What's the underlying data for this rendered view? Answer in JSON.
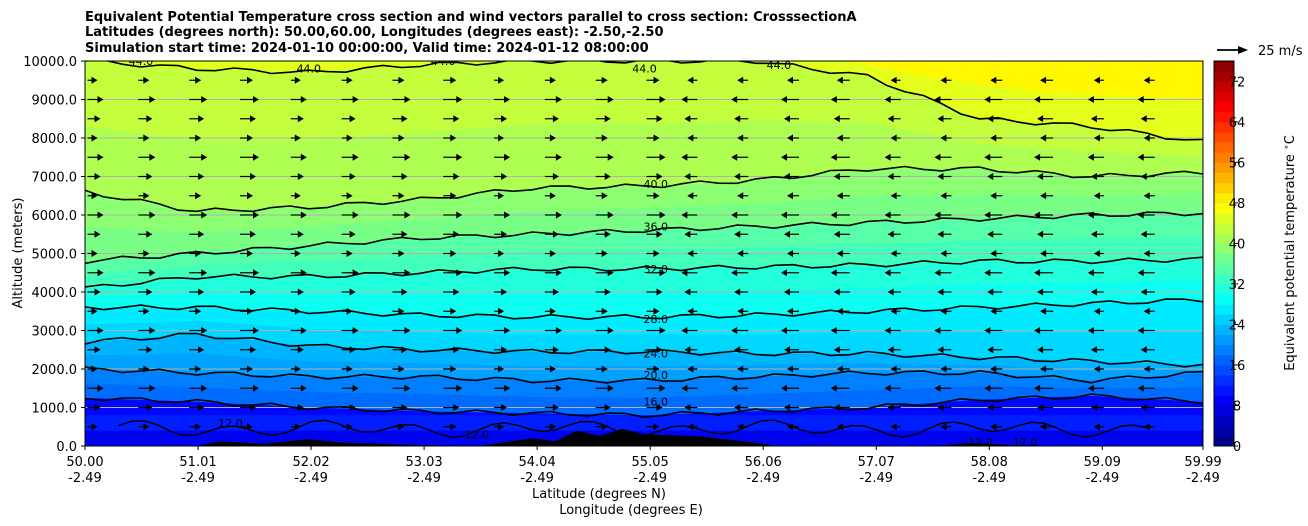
{
  "chart_data": {
    "type": "contourf-cross-section",
    "title_lines": [
      "Equivalent Potential Temperature cross section and wind vectors parallel to cross section: CrosssectionA",
      "Latitudes (degrees north): 50.00,60.00, Longitudes (degrees east): -2.50,-2.50",
      "Simulation start time: 2024-01-10 00:00:00, Valid time: 2024-01-12 08:00:00"
    ],
    "ylabel": "Altitude (meters)",
    "xlabel_lat": "Latitude (degrees N)",
    "xlabel_lon": "Longitude (degrees E)",
    "ylim": [
      0,
      10000
    ],
    "xlim": [
      50.0,
      59.99
    ],
    "y_ticks": [
      "0.0",
      "1000.0",
      "2000.0",
      "3000.0",
      "4000.0",
      "5000.0",
      "6000.0",
      "7000.0",
      "8000.0",
      "9000.0",
      "10000.0"
    ],
    "x_ticks_lat": [
      "50.00",
      "51.01",
      "52.02",
      "53.03",
      "54.04",
      "55.05",
      "56.06",
      "57.07",
      "58.08",
      "59.09",
      "59.99"
    ],
    "x_ticks_lon": [
      "-2.49",
      "-2.49",
      "-2.49",
      "-2.49",
      "-2.49",
      "-2.49",
      "-2.49",
      "-2.49",
      "-2.49",
      "-2.49",
      "-2.49"
    ],
    "grid": "horizontal",
    "colorbar": {
      "label": "Equivalent potential temperature $^\\circ$C",
      "min": 0,
      "max": 76,
      "step": 2,
      "ticks": [
        "0",
        "8",
        "16",
        "24",
        "32",
        "40",
        "48",
        "56",
        "64",
        "72"
      ],
      "colormap": "jet"
    },
    "contour_labels": [
      {
        "value": "12.0",
        "lat": 51.3,
        "alt": 600
      },
      {
        "value": "12.0",
        "lat": 53.5,
        "alt": 300
      },
      {
        "value": "12.0",
        "lat": 58.0,
        "alt": 100
      },
      {
        "value": "12.0",
        "lat": 58.4,
        "alt": 100
      },
      {
        "value": "16.0",
        "lat": 55.1,
        "alt": 1150
      },
      {
        "value": "20.0",
        "lat": 55.1,
        "alt": 1850
      },
      {
        "value": "24.0",
        "lat": 55.1,
        "alt": 2400
      },
      {
        "value": "28.0",
        "lat": 55.1,
        "alt": 3300
      },
      {
        "value": "32.0",
        "lat": 55.1,
        "alt": 4600
      },
      {
        "value": "36.0",
        "lat": 55.1,
        "alt": 5700
      },
      {
        "value": "40.0",
        "lat": 55.1,
        "alt": 6800
      },
      {
        "value": "44.0",
        "lat": 50.5,
        "alt": 10000
      },
      {
        "value": "44.0",
        "lat": 52.0,
        "alt": 9800
      },
      {
        "value": "44.0",
        "lat": 53.2,
        "alt": 10000
      },
      {
        "value": "44.0",
        "lat": 55.0,
        "alt": 9800
      },
      {
        "value": "44.0",
        "lat": 56.2,
        "alt": 9900
      }
    ],
    "isolines": [
      {
        "value": 16,
        "alt": [
          1250,
          1150,
          1000,
          900,
          850,
          800,
          900,
          1000,
          1200,
          1300,
          1150
        ]
      },
      {
        "value": 20,
        "alt": [
          2000,
          1900,
          1800,
          1800,
          1700,
          1700,
          1800,
          1900,
          1900,
          1700,
          1900
        ]
      },
      {
        "value": 24,
        "alt": [
          2700,
          2900,
          2600,
          2500,
          2450,
          2450,
          2400,
          2400,
          2300,
          2200,
          2100
        ]
      },
      {
        "value": 28,
        "alt": [
          3600,
          3600,
          3500,
          3400,
          3350,
          3350,
          3400,
          3500,
          3600,
          3700,
          3800
        ]
      },
      {
        "value": 32,
        "alt": [
          4100,
          4400,
          4400,
          4500,
          4600,
          4600,
          4650,
          4700,
          4800,
          4800,
          4850
        ]
      },
      {
        "value": 36,
        "alt": [
          4800,
          5000,
          5200,
          5400,
          5500,
          5600,
          5700,
          5800,
          5900,
          6000,
          6050
        ]
      },
      {
        "value": 40,
        "alt": [
          6600,
          6100,
          6200,
          6400,
          6700,
          6750,
          6900,
          7200,
          7200,
          7000,
          7100
        ]
      },
      {
        "value": 44,
        "alt": [
          10000,
          9800,
          9700,
          9900,
          10000,
          10000,
          10000,
          9600,
          8500,
          8300,
          7900
        ]
      }
    ],
    "wind_vectors": {
      "scale_label": "25 m/s",
      "rows_alt": [
        500,
        1000,
        1500,
        2000,
        2500,
        3000,
        3500,
        4000,
        4500,
        5000,
        5500,
        6000,
        6500,
        7000,
        7500,
        8000,
        8500,
        9000,
        9500
      ],
      "direction_flip_lat": 55.1,
      "south_direction": "east",
      "north_direction": "west"
    },
    "terrain": "bumps at lat 51.0-55.0 up to ~450 m"
  }
}
